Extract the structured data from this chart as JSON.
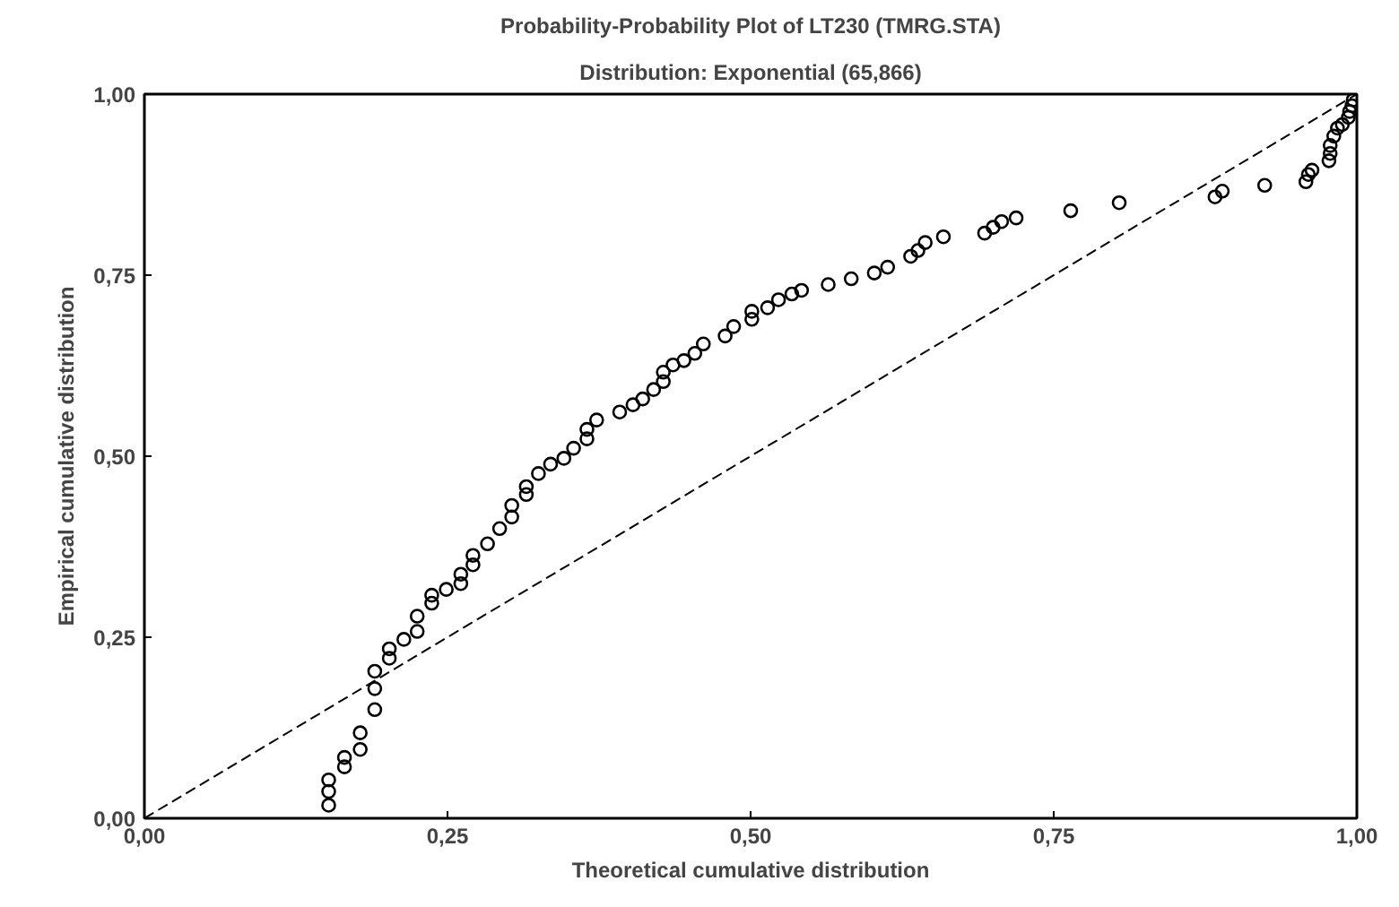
{
  "chart_data": {
    "type": "scatter",
    "title": "Probability-Probability Plot of LT230 (TMRG.STA)",
    "subtitle": "Distribution: Exponential (65,866)",
    "xlabel": "Theoretical cumulative distribution",
    "ylabel": "Empirical cumulative distribution",
    "xlim": [
      0,
      1
    ],
    "ylim": [
      0,
      1
    ],
    "xticks": [
      {
        "value": 0,
        "label": "0,00"
      },
      {
        "value": 0.25,
        "label": "0,25"
      },
      {
        "value": 0.5,
        "label": "0,50"
      },
      {
        "value": 0.75,
        "label": "0,75"
      },
      {
        "value": 1,
        "label": "1,00"
      }
    ],
    "yticks": [
      {
        "value": 0,
        "label": "0,00"
      },
      {
        "value": 0.25,
        "label": "0,25"
      },
      {
        "value": 0.5,
        "label": "0,50"
      },
      {
        "value": 0.75,
        "label": "0,75"
      },
      {
        "value": 1,
        "label": "1,00"
      }
    ],
    "grid": false,
    "series": [
      {
        "marker": "circle",
        "color": "#000000",
        "x": [
          0.152,
          0.152,
          0.152,
          0.165,
          0.165,
          0.178,
          0.178,
          0.19,
          0.19,
          0.19,
          0.202,
          0.202,
          0.214,
          0.225,
          0.225,
          0.237,
          0.237,
          0.249,
          0.261,
          0.261,
          0.271,
          0.271,
          0.283,
          0.293,
          0.303,
          0.303,
          0.315,
          0.315,
          0.325,
          0.335,
          0.346,
          0.354,
          0.365,
          0.365,
          0.373,
          0.392,
          0.403,
          0.411,
          0.42,
          0.428,
          0.428,
          0.436,
          0.445,
          0.454,
          0.461,
          0.479,
          0.486,
          0.501,
          0.501,
          0.514,
          0.523,
          0.534,
          0.542,
          0.564,
          0.583,
          0.602,
          0.613,
          0.632,
          0.638,
          0.644,
          0.659,
          0.693,
          0.7,
          0.707,
          0.719,
          0.764,
          0.804,
          0.883,
          0.889,
          0.924,
          0.958,
          0.96,
          0.963,
          0.977,
          0.978,
          0.978,
          0.981,
          0.984,
          0.988,
          0.993,
          0.994,
          0.996,
          0.997
        ],
        "values": [
          0.018,
          0.037,
          0.053,
          0.071,
          0.084,
          0.095,
          0.118,
          0.15,
          0.179,
          0.203,
          0.221,
          0.234,
          0.247,
          0.258,
          0.279,
          0.297,
          0.308,
          0.316,
          0.324,
          0.337,
          0.35,
          0.363,
          0.379,
          0.4,
          0.416,
          0.432,
          0.447,
          0.458,
          0.476,
          0.489,
          0.497,
          0.511,
          0.524,
          0.537,
          0.55,
          0.561,
          0.571,
          0.579,
          0.592,
          0.603,
          0.616,
          0.626,
          0.632,
          0.642,
          0.655,
          0.666,
          0.679,
          0.689,
          0.7,
          0.705,
          0.716,
          0.724,
          0.729,
          0.737,
          0.745,
          0.753,
          0.761,
          0.776,
          0.784,
          0.795,
          0.803,
          0.808,
          0.816,
          0.824,
          0.829,
          0.839,
          0.85,
          0.858,
          0.866,
          0.874,
          0.879,
          0.889,
          0.895,
          0.908,
          0.918,
          0.929,
          0.942,
          0.953,
          0.958,
          0.968,
          0.976,
          0.984,
          0.992
        ]
      },
      {
        "type": "line",
        "marker": "none",
        "color": "#000000",
        "line_style": "dashed",
        "x": [
          0,
          1
        ],
        "values": [
          0,
          1
        ]
      }
    ]
  }
}
